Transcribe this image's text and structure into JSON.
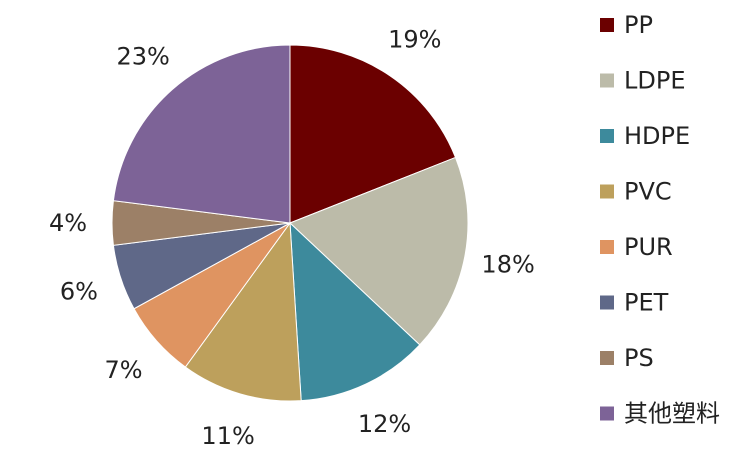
{
  "chart_data": {
    "type": "pie",
    "categories": [
      "PP",
      "LDPE",
      "HDPE",
      "PVC",
      "PUR",
      "PET",
      "PS",
      "其他塑料"
    ],
    "values": [
      19,
      18,
      12,
      11,
      7,
      6,
      4,
      23
    ],
    "value_labels": [
      "19%",
      "18%",
      "12%",
      "11%",
      "7%",
      "6%",
      "4%",
      "23%"
    ],
    "colors": [
      "#6b0000",
      "#bcbba9",
      "#3d8a9c",
      "#bda05c",
      "#df9461",
      "#5f6888",
      "#9c8067",
      "#7d6397"
    ],
    "title": "",
    "legend_position": "right",
    "start_angle_deg": 0,
    "direction": "clockwise"
  }
}
